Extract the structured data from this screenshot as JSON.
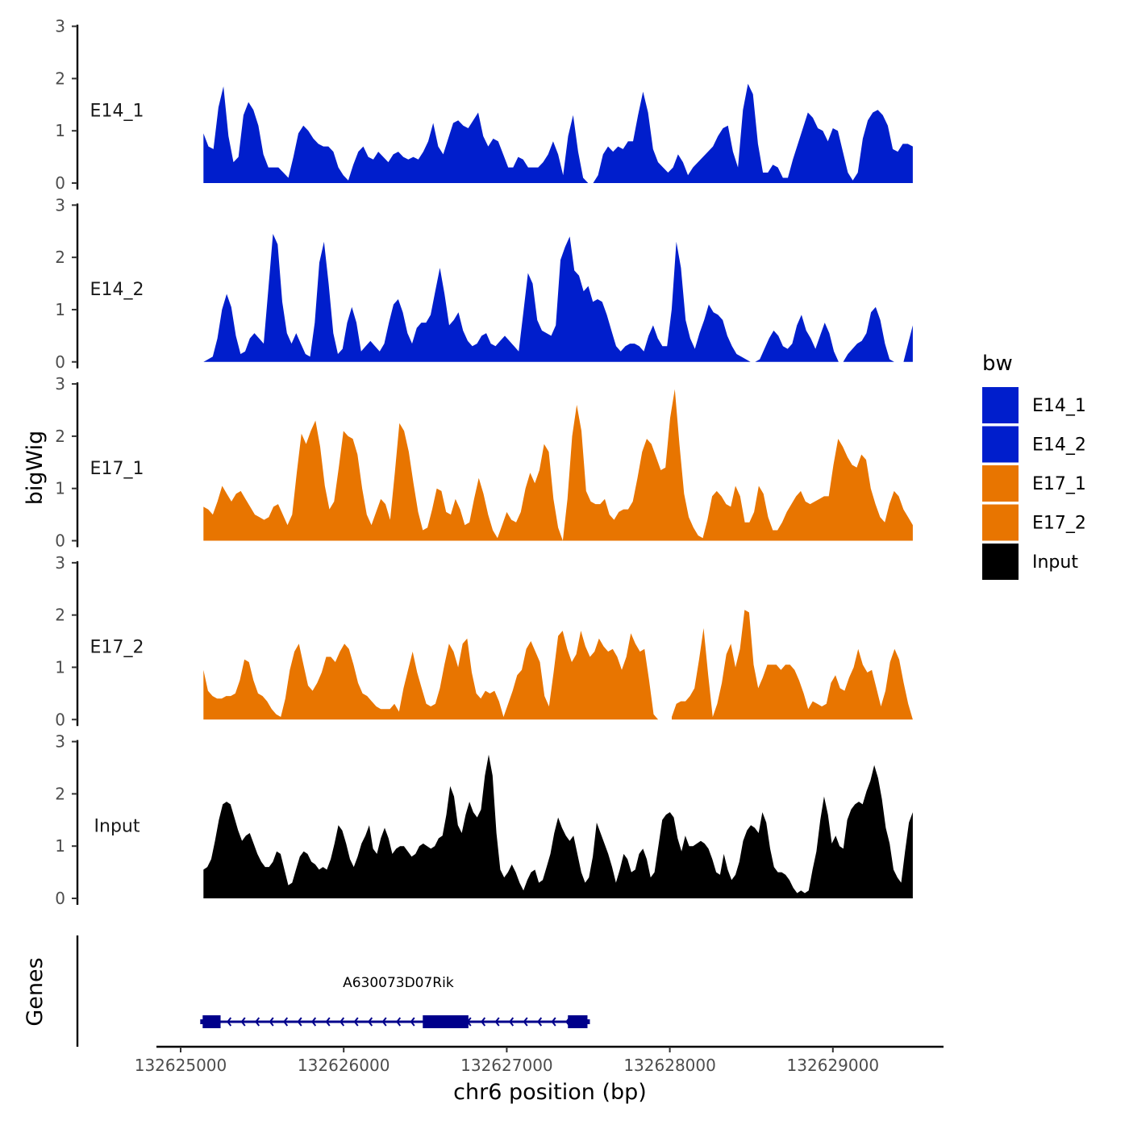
{
  "chart_data": {
    "type": "area",
    "title": "",
    "ylabel": "bigWig",
    "xlabel": "chr6 position (bp)",
    "xlim": [
      132624850,
      132629730
    ],
    "x_ticks": [
      132625000,
      132626000,
      132627000,
      132628000,
      132629000
    ],
    "x_tick_labels": [
      "132625000",
      "132626000",
      "132627000",
      "132628000",
      "132629000"
    ],
    "ylim": [
      0,
      3
    ],
    "y_ticks": [
      0,
      1,
      2,
      3
    ],
    "y_tick_labels": [
      "0",
      "1",
      "2",
      "3"
    ],
    "series": [
      {
        "name": "E14_1",
        "color": "#001ECC",
        "x_start": 132625140,
        "x_end": 132629490,
        "values": [
          0.95,
          0.7,
          0.65,
          1.45,
          1.85,
          0.9,
          0.4,
          0.5,
          1.3,
          1.55,
          1.4,
          1.1,
          0.55,
          0.3,
          0.3,
          0.3,
          0.2,
          0.1,
          0.5,
          0.95,
          1.1,
          1.0,
          0.85,
          0.75,
          0.7,
          0.7,
          0.6,
          0.3,
          0.15,
          0.05,
          0.35,
          0.6,
          0.7,
          0.5,
          0.45,
          0.6,
          0.5,
          0.4,
          0.55,
          0.6,
          0.5,
          0.45,
          0.5,
          0.45,
          0.6,
          0.8,
          1.15,
          0.7,
          0.55,
          0.85,
          1.15,
          1.2,
          1.1,
          1.05,
          1.2,
          1.35,
          0.9,
          0.7,
          0.85,
          0.8,
          0.55,
          0.3,
          0.3,
          0.5,
          0.45,
          0.3,
          0.3,
          0.3,
          0.4,
          0.55,
          0.8,
          0.55,
          0.15,
          0.9,
          1.3,
          0.6,
          0.1,
          0.0,
          0.0,
          0.15,
          0.55,
          0.7,
          0.6,
          0.7,
          0.65,
          0.8,
          0.8,
          1.3,
          1.75,
          1.35,
          0.65,
          0.4,
          0.3,
          0.2,
          0.3,
          0.55,
          0.4,
          0.15,
          0.3,
          0.4,
          0.5,
          0.6,
          0.7,
          0.9,
          1.05,
          1.1,
          0.6,
          0.3,
          1.4,
          1.9,
          1.7,
          0.75,
          0.2,
          0.2,
          0.35,
          0.3,
          0.1,
          0.1,
          0.45,
          0.75,
          1.05,
          1.35,
          1.25,
          1.05,
          1.0,
          0.8,
          1.05,
          1.0,
          0.6,
          0.2,
          0.05,
          0.2,
          0.85,
          1.2,
          1.35,
          1.4,
          1.3,
          1.1,
          0.65,
          0.6,
          0.75,
          0.75,
          0.7
        ]
      },
      {
        "name": "E14_2",
        "color": "#001ECC",
        "x_start": 132625140,
        "x_end": 132629490,
        "values": [
          0.0,
          0.05,
          0.1,
          0.45,
          1.0,
          1.3,
          1.05,
          0.5,
          0.15,
          0.2,
          0.45,
          0.55,
          0.45,
          0.35,
          1.4,
          2.45,
          2.25,
          1.15,
          0.55,
          0.35,
          0.55,
          0.35,
          0.15,
          0.1,
          0.75,
          1.9,
          2.3,
          1.5,
          0.55,
          0.15,
          0.25,
          0.75,
          1.05,
          0.75,
          0.2,
          0.3,
          0.4,
          0.3,
          0.2,
          0.35,
          0.75,
          1.1,
          1.2,
          0.95,
          0.55,
          0.35,
          0.65,
          0.75,
          0.75,
          0.9,
          1.35,
          1.8,
          1.3,
          0.7,
          0.8,
          0.95,
          0.6,
          0.4,
          0.3,
          0.35,
          0.5,
          0.55,
          0.35,
          0.3,
          0.4,
          0.5,
          0.4,
          0.3,
          0.2,
          0.95,
          1.7,
          1.5,
          0.8,
          0.6,
          0.55,
          0.5,
          0.7,
          1.95,
          2.2,
          2.4,
          1.75,
          1.65,
          1.35,
          1.45,
          1.15,
          1.2,
          1.15,
          0.9,
          0.6,
          0.3,
          0.2,
          0.3,
          0.35,
          0.35,
          0.3,
          0.2,
          0.5,
          0.7,
          0.45,
          0.3,
          0.3,
          1.0,
          2.3,
          1.8,
          0.8,
          0.45,
          0.25,
          0.55,
          0.8,
          1.1,
          0.95,
          0.9,
          0.8,
          0.5,
          0.3,
          0.15,
          0.1,
          0.05,
          0.0,
          0.0,
          0.05,
          0.25,
          0.45,
          0.6,
          0.5,
          0.3,
          0.25,
          0.35,
          0.7,
          0.9,
          0.6,
          0.45,
          0.25,
          0.5,
          0.75,
          0.55,
          0.2,
          0.0,
          0.0,
          0.15,
          0.25,
          0.35,
          0.4,
          0.55,
          0.95,
          1.05,
          0.8,
          0.35,
          0.05,
          0.0,
          0.0,
          0.0,
          0.35,
          0.7
        ]
      },
      {
        "name": "E17_1",
        "color": "#E87500",
        "x_start": 132625140,
        "x_end": 132629490,
        "values": [
          0.65,
          0.6,
          0.5,
          0.75,
          1.05,
          0.9,
          0.75,
          0.9,
          0.95,
          0.8,
          0.65,
          0.5,
          0.45,
          0.4,
          0.45,
          0.65,
          0.7,
          0.5,
          0.3,
          0.5,
          1.3,
          2.05,
          1.85,
          2.1,
          2.3,
          1.8,
          1.05,
          0.6,
          0.75,
          1.4,
          2.1,
          2.0,
          1.95,
          1.65,
          1.0,
          0.5,
          0.3,
          0.55,
          0.8,
          0.7,
          0.4,
          1.3,
          2.25,
          2.1,
          1.7,
          1.1,
          0.55,
          0.2,
          0.25,
          0.6,
          1.0,
          0.95,
          0.55,
          0.5,
          0.8,
          0.6,
          0.3,
          0.35,
          0.8,
          1.2,
          0.9,
          0.5,
          0.2,
          0.05,
          0.3,
          0.55,
          0.4,
          0.35,
          0.55,
          1.0,
          1.3,
          1.1,
          1.35,
          1.85,
          1.7,
          0.8,
          0.25,
          0.0,
          0.8,
          2.0,
          2.6,
          2.1,
          0.95,
          0.75,
          0.7,
          0.7,
          0.8,
          0.5,
          0.4,
          0.55,
          0.6,
          0.6,
          0.75,
          1.2,
          1.7,
          1.95,
          1.85,
          1.6,
          1.35,
          1.4,
          2.35,
          2.9,
          1.85,
          0.9,
          0.45,
          0.25,
          0.1,
          0.05,
          0.4,
          0.85,
          0.95,
          0.85,
          0.7,
          0.65,
          1.05,
          0.85,
          0.35,
          0.35,
          0.55,
          1.05,
          0.9,
          0.45,
          0.2,
          0.2,
          0.35,
          0.55,
          0.7,
          0.85,
          0.95,
          0.75,
          0.7,
          0.75,
          0.8,
          0.85,
          0.85,
          1.45,
          1.95,
          1.8,
          1.6,
          1.45,
          1.4,
          1.65,
          1.55,
          1.0,
          0.7,
          0.45,
          0.35,
          0.7,
          0.95,
          0.85,
          0.6,
          0.45,
          0.3
        ]
      },
      {
        "name": "E17_2",
        "color": "#E87500",
        "x_start": 132625140,
        "x_end": 132629490,
        "values": [
          0.95,
          0.55,
          0.45,
          0.4,
          0.4,
          0.45,
          0.45,
          0.5,
          0.75,
          1.15,
          1.1,
          0.75,
          0.5,
          0.45,
          0.35,
          0.2,
          0.1,
          0.05,
          0.4,
          0.95,
          1.3,
          1.45,
          1.05,
          0.65,
          0.55,
          0.7,
          0.9,
          1.2,
          1.2,
          1.1,
          1.3,
          1.45,
          1.35,
          1.05,
          0.7,
          0.5,
          0.45,
          0.35,
          0.25,
          0.2,
          0.2,
          0.2,
          0.3,
          0.15,
          0.6,
          0.95,
          1.3,
          0.9,
          0.6,
          0.3,
          0.25,
          0.3,
          0.6,
          1.05,
          1.45,
          1.3,
          1.0,
          1.45,
          1.55,
          0.9,
          0.5,
          0.4,
          0.55,
          0.5,
          0.55,
          0.35,
          0.05,
          0.3,
          0.55,
          0.85,
          0.95,
          1.35,
          1.5,
          1.3,
          1.1,
          0.45,
          0.25,
          0.9,
          1.6,
          1.7,
          1.35,
          1.1,
          1.25,
          1.7,
          1.4,
          1.2,
          1.3,
          1.55,
          1.4,
          1.3,
          1.35,
          1.2,
          0.95,
          1.2,
          1.65,
          1.45,
          1.3,
          1.35,
          0.75,
          0.1,
          0.0,
          null,
          null,
          0.05,
          0.3,
          0.35,
          0.35,
          0.45,
          0.6,
          1.15,
          1.75,
          0.85,
          0.05,
          0.3,
          0.7,
          1.25,
          1.45,
          1.0,
          1.35,
          2.1,
          2.05,
          1.05,
          0.6,
          0.8,
          1.05,
          1.05,
          1.05,
          0.95,
          1.05,
          1.05,
          0.95,
          0.75,
          0.5,
          0.2,
          0.35,
          0.3,
          0.25,
          0.3,
          0.7,
          0.85,
          0.6,
          0.55,
          0.8,
          1.0,
          1.35,
          1.05,
          0.9,
          0.95,
          0.6,
          0.25,
          0.55,
          1.1,
          1.35,
          1.15,
          0.7,
          0.3,
          0.0
        ]
      },
      {
        "name": "Input",
        "color": "#000000",
        "x_start": 132625140,
        "x_end": 132629490,
        "values": [
          0.55,
          0.6,
          0.75,
          1.1,
          1.5,
          1.8,
          1.85,
          1.8,
          1.55,
          1.3,
          1.1,
          1.2,
          1.25,
          1.05,
          0.85,
          0.7,
          0.6,
          0.6,
          0.7,
          0.9,
          0.85,
          0.55,
          0.25,
          0.3,
          0.55,
          0.8,
          0.9,
          0.85,
          0.7,
          0.65,
          0.55,
          0.6,
          0.55,
          0.75,
          1.05,
          1.4,
          1.3,
          1.05,
          0.75,
          0.6,
          0.8,
          1.05,
          1.2,
          1.4,
          0.95,
          0.85,
          1.15,
          1.35,
          1.15,
          0.85,
          0.95,
          1.0,
          1.0,
          0.9,
          0.8,
          0.85,
          1.0,
          1.05,
          1.0,
          0.95,
          1.0,
          1.15,
          1.2,
          1.6,
          2.15,
          1.95,
          1.4,
          1.25,
          1.6,
          1.85,
          1.65,
          1.55,
          1.7,
          2.35,
          2.75,
          2.35,
          1.25,
          0.55,
          0.4,
          0.5,
          0.65,
          0.5,
          0.3,
          0.15,
          0.35,
          0.5,
          0.55,
          0.3,
          0.35,
          0.6,
          0.85,
          1.25,
          1.55,
          1.35,
          1.2,
          1.1,
          1.2,
          0.85,
          0.5,
          0.3,
          0.4,
          0.8,
          1.45,
          1.25,
          1.05,
          0.85,
          0.6,
          0.3,
          0.55,
          0.85,
          0.75,
          0.5,
          0.55,
          0.85,
          0.95,
          0.75,
          0.4,
          0.5,
          1.0,
          1.5,
          1.6,
          1.65,
          1.55,
          1.15,
          0.9,
          1.2,
          1.0,
          1.0,
          1.05,
          1.1,
          1.05,
          0.95,
          0.75,
          0.5,
          0.45,
          0.85,
          0.55,
          0.35,
          0.45,
          0.7,
          1.1,
          1.3,
          1.4,
          1.35,
          1.25,
          1.65,
          1.45,
          0.95,
          0.6,
          0.5,
          0.5,
          0.45,
          0.35,
          0.2,
          0.1,
          0.15,
          0.1,
          0.15,
          0.55,
          0.9,
          1.5,
          1.95,
          1.6,
          1.05,
          1.2,
          1.0,
          0.95,
          1.5,
          1.7,
          1.8,
          1.85,
          1.8,
          2.05,
          2.25,
          2.55,
          2.3,
          1.9,
          1.35,
          1.05,
          0.55,
          0.4,
          0.3,
          0.9,
          1.45,
          1.65
        ]
      }
    ],
    "genes_track": {
      "label": "Genes",
      "genes": [
        {
          "name": "A630073D07Rik",
          "start": 132625140,
          "end": 132627490,
          "strand": "-",
          "exons": [
            [
              132625140,
              132625240
            ],
            [
              132626490,
              132626760
            ],
            [
              132627380,
              132627490
            ]
          ]
        }
      ]
    },
    "legend": {
      "title": "bw",
      "position": "right",
      "entries": [
        {
          "label": "E14_1",
          "color": "#001ECC"
        },
        {
          "label": "E14_2",
          "color": "#001ECC"
        },
        {
          "label": "E17_1",
          "color": "#E87500"
        },
        {
          "label": "E17_2",
          "color": "#E87500"
        },
        {
          "label": "Input",
          "color": "#000000"
        }
      ]
    }
  }
}
